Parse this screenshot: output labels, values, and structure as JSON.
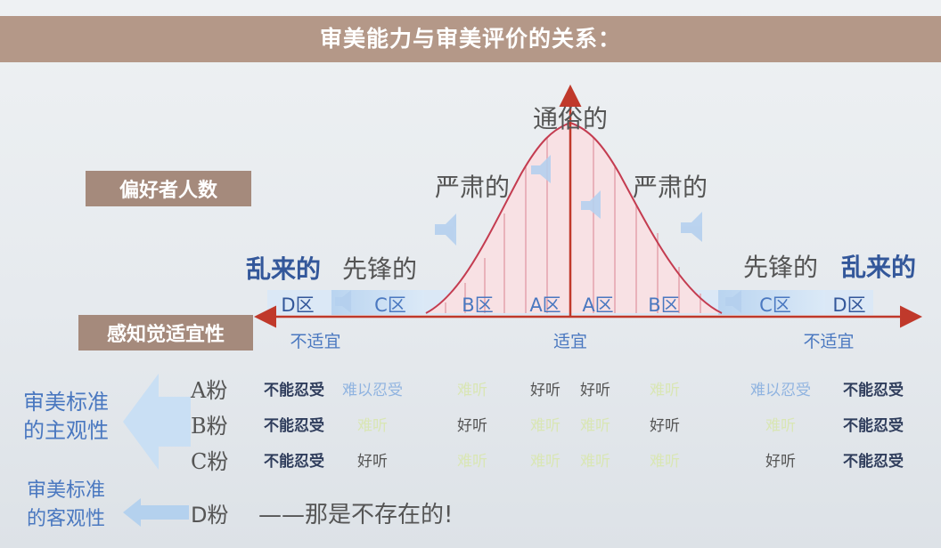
{
  "title": "审美能力与审美评价的关系：",
  "y_axis_label": "偏好者人数",
  "x_axis_label": "感知觉适宜性",
  "styles": {
    "popular": "通俗的",
    "serious_left": "严肃的",
    "serious_right": "严肃的",
    "avantgarde_left": "先锋的",
    "avantgarde_right": "先锋的",
    "random_left": "乱来的",
    "random_right": "乱来的"
  },
  "zones": [
    "D区",
    "C区",
    "B区",
    "A区",
    "A区",
    "B区",
    "C区",
    "D区"
  ],
  "x_ticks": {
    "left": "不适宜",
    "center": "适宜",
    "right": "不适宜"
  },
  "left_labels": {
    "subjective": "审美标准\n的主观性",
    "objective": "审美标准\n的客观性"
  },
  "fans": [
    {
      "label": "A粉",
      "ratings": [
        "不能忍受",
        "难以忍受",
        "难听",
        "好听",
        "好听",
        "难听",
        "难以忍受",
        "不能忍受"
      ]
    },
    {
      "label": "B粉",
      "ratings": [
        "不能忍受",
        "难听",
        "好听",
        "难听",
        "难听",
        "好听",
        "难听",
        "不能忍受"
      ]
    },
    {
      "label": "C粉",
      "ratings": [
        "不能忍受",
        "好听",
        "难听",
        "难听",
        "难听",
        "难听",
        "好听",
        "不能忍受"
      ]
    }
  ],
  "d_fan": {
    "label": "D粉",
    "text": "——那是不存在的!"
  },
  "colors": {
    "banner": "#b49888",
    "tan_label": "#a58a7c",
    "accent_blue": "#33579a",
    "curve_fill": "#f5d8dc",
    "curve_line": "#c43c50"
  }
}
